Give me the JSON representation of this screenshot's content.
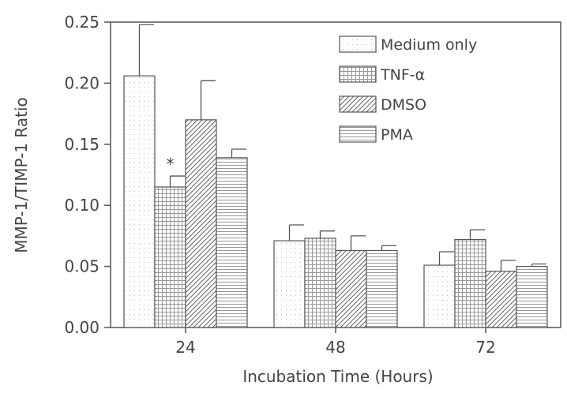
{
  "chart_data": {
    "type": "bar",
    "title": "",
    "xlabel": "Incubation Time (Hours)",
    "ylabel": "MMP-1/TIMP-1 Ratio",
    "categories": [
      "24",
      "48",
      "72"
    ],
    "ylim": [
      0,
      0.25
    ],
    "yticks": [
      "0.00",
      "0.05",
      "0.10",
      "0.15",
      "0.20",
      "0.25"
    ],
    "grid": false,
    "legend_position": "top-right",
    "series": [
      {
        "name": "Medium only",
        "pattern": "dots-sparse",
        "values": [
          0.206,
          0.071,
          0.051
        ],
        "errors": [
          0.042,
          0.013,
          0.011
        ]
      },
      {
        "name": "TNF-α",
        "pattern": "grid",
        "values": [
          0.115,
          0.073,
          0.072
        ],
        "errors": [
          0.009,
          0.006,
          0.008
        ]
      },
      {
        "name": "DMSO",
        "pattern": "diagonal-hatch",
        "values": [
          0.17,
          0.063,
          0.046
        ],
        "errors": [
          0.032,
          0.012,
          0.009
        ]
      },
      {
        "name": "PMA",
        "pattern": "horizontal-lines",
        "values": [
          0.139,
          0.063,
          0.05
        ],
        "errors": [
          0.007,
          0.004,
          0.002
        ]
      }
    ],
    "annotations": [
      {
        "text": "*",
        "category": "24",
        "series": "TNF-α"
      }
    ]
  }
}
